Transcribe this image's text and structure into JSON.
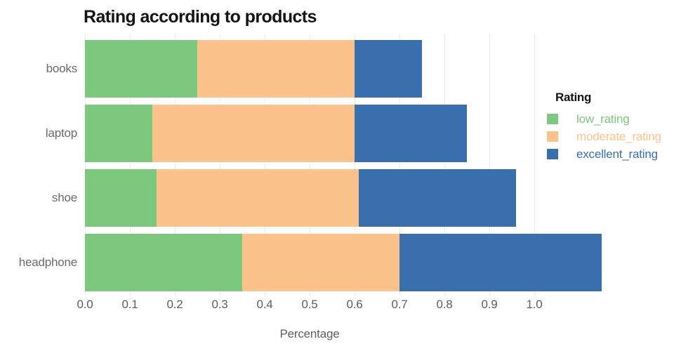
{
  "chart_data": {
    "type": "bar",
    "orientation": "horizontal",
    "stacked": true,
    "title": "Rating according to products",
    "xlabel": "Percentage",
    "ylabel": "",
    "categories": [
      "books",
      "laptop",
      "shoe",
      "headphone"
    ],
    "series": [
      {
        "name": "low_rating",
        "color": "#7cc87e",
        "values": [
          0.25,
          0.15,
          0.16,
          0.35
        ]
      },
      {
        "name": "moderate_rating",
        "color": "#fbc28b",
        "values": [
          0.35,
          0.45,
          0.45,
          0.35
        ]
      },
      {
        "name": "excellent_rating",
        "color": "#3a6fae",
        "values": [
          0.15,
          0.25,
          0.35,
          0.45
        ]
      }
    ],
    "x_ticks": [
      "0.0",
      "0.1",
      "0.2",
      "0.3",
      "0.4",
      "0.5",
      "0.6",
      "0.7",
      "0.8",
      "0.9",
      "1.0"
    ],
    "xlim": [
      0,
      1.155
    ],
    "grid": true,
    "legend": {
      "title": "Rating",
      "position": "right"
    },
    "colors": {
      "background": "#ffffff",
      "title_text": "#141414",
      "axis_text": "#5d5d5d",
      "category_text": "#6a6a6a",
      "gridline": "#f5e6ea"
    }
  }
}
